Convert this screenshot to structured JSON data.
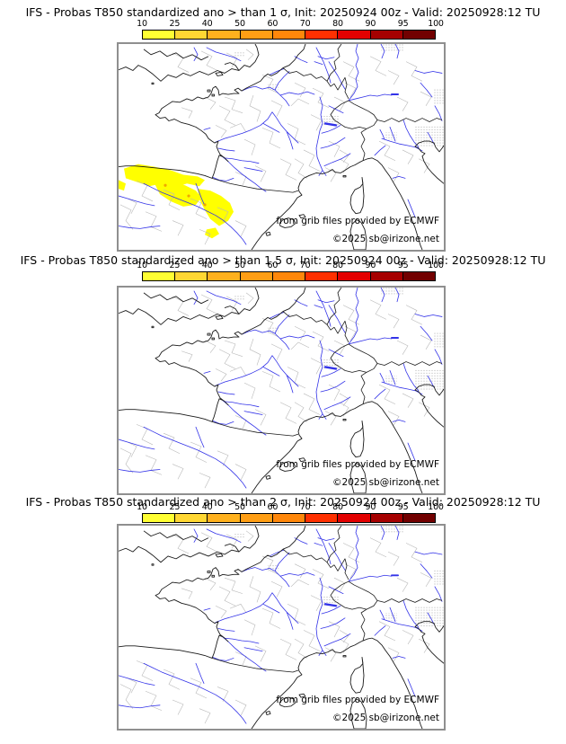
{
  "page": {
    "background": "#ffffff"
  },
  "colorbar": {
    "ticks": [
      "10",
      "25",
      "40",
      "50",
      "60",
      "70",
      "80",
      "90",
      "95",
      "100"
    ],
    "colors": [
      "#ffff33",
      "#ffd733",
      "#ffb11e",
      "#ff9e14",
      "#ff870a",
      "#ff3000",
      "#e30000",
      "#a60000",
      "#720000"
    ],
    "border_color": "#000000"
  },
  "panels": [
    {
      "title": "IFS - Probas T850  standardized ano > than 1 σ, Init: 20250924 00z - Valid: 20250928:12 TU",
      "model": "IFS",
      "variable": "T850",
      "threshold": "1 σ",
      "init": "20250924 00z",
      "valid": "20250928:12 TU",
      "attribution_line1": "from grib files provided by ECMWF",
      "attribution_line2": "©2025 sb@irizone.net",
      "overlay": {
        "description": "Yellow 10-25% probability shading over northern Spain, the western Pyrenees and the Ebro valley",
        "color": "#ffff00",
        "spot_color": "#f0a800",
        "regions": [
          [
            [
              6,
              141
            ],
            [
              22,
              136
            ],
            [
              40,
              139
            ],
            [
              58,
              143
            ],
            [
              72,
              148
            ],
            [
              88,
              150
            ],
            [
              96,
              154
            ],
            [
              90,
              161
            ],
            [
              76,
              158
            ],
            [
              62,
              163
            ],
            [
              48,
              158
            ],
            [
              34,
              161
            ],
            [
              20,
              156
            ],
            [
              8,
              152
            ]
          ],
          [
            [
              40,
              158
            ],
            [
              58,
              156
            ],
            [
              74,
              160
            ],
            [
              86,
              166
            ],
            [
              92,
              174
            ],
            [
              86,
              182
            ],
            [
              72,
              184
            ],
            [
              58,
              178
            ],
            [
              46,
              170
            ]
          ],
          [
            [
              88,
              164
            ],
            [
              102,
              166
            ],
            [
              114,
              172
            ],
            [
              124,
              180
            ],
            [
              128,
              190
            ],
            [
              122,
              200
            ],
            [
              112,
              206
            ],
            [
              102,
              198
            ],
            [
              96,
              188
            ],
            [
              90,
              176
            ]
          ],
          [
            [
              98,
              210
            ],
            [
              108,
              208
            ],
            [
              112,
              215
            ],
            [
              104,
              220
            ],
            [
              96,
              216
            ]
          ],
          [
            [
              0,
              154
            ],
            [
              8,
              158
            ],
            [
              6,
              166
            ],
            [
              0,
              164
            ]
          ]
        ],
        "spots": [
          [
            52,
            160
          ],
          [
            78,
            172
          ],
          [
            96,
            182
          ]
        ]
      }
    },
    {
      "title": "IFS - Probas T850  standardized ano > than 1.5 σ, Init: 20250924 00z - Valid: 20250928:12 TU",
      "model": "IFS",
      "variable": "T850",
      "threshold": "1.5 σ",
      "init": "20250924 00z",
      "valid": "20250928:12 TU",
      "attribution_line1": "from grib files provided by ECMWF",
      "attribution_line2": "©2025 sb@irizone.net",
      "overlay": null
    },
    {
      "title": "IFS - Probas T850  standardized ano > than 2 σ, Init: 20250924 00z - Valid: 20250928:12 TU",
      "model": "IFS",
      "variable": "T850",
      "threshold": "2 σ",
      "init": "20250924 00z",
      "valid": "20250928:12 TU",
      "attribution_line1": "from grib files provided by ECMWF",
      "attribution_line2": "©2025 sb@irizone.net",
      "overlay": null
    }
  ]
}
